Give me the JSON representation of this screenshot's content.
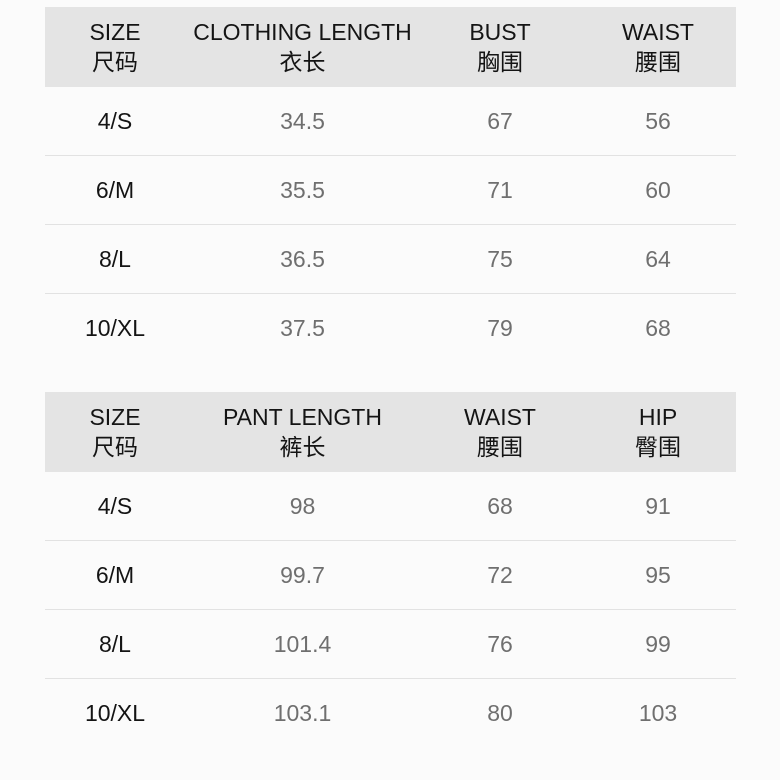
{
  "colors": {
    "page_bg": "#fbfbfb",
    "header_bg": "#e4e4e4",
    "divider": "#e2e2e2",
    "header_text": "#141414",
    "size_label_text": "#141414",
    "value_text": "#6f6f6f"
  },
  "chart_data": [
    {
      "type": "table",
      "title": "",
      "columns": [
        {
          "en": "SIZE",
          "zh": "尺码"
        },
        {
          "en": "CLOTHING LENGTH",
          "zh": "衣长"
        },
        {
          "en": "BUST",
          "zh": "胸围"
        },
        {
          "en": "WAIST",
          "zh": "腰围"
        }
      ],
      "rows": [
        [
          "4/S",
          34.5,
          67,
          56
        ],
        [
          "6/M",
          35.5,
          71,
          60
        ],
        [
          "8/L",
          36.5,
          75,
          64
        ],
        [
          "10/XL",
          37.5,
          79,
          68
        ]
      ]
    },
    {
      "type": "table",
      "title": "",
      "columns": [
        {
          "en": "SIZE",
          "zh": "尺码"
        },
        {
          "en": "PANT LENGTH",
          "zh": "裤长"
        },
        {
          "en": "WAIST",
          "zh": "腰围"
        },
        {
          "en": "HIP",
          "zh": "臀围"
        }
      ],
      "rows": [
        [
          "4/S",
          98,
          68,
          91
        ],
        [
          "6/M",
          99.7,
          72,
          95
        ],
        [
          "8/L",
          101.4,
          76,
          99
        ],
        [
          "10/XL",
          103.1,
          80,
          103
        ]
      ]
    }
  ]
}
